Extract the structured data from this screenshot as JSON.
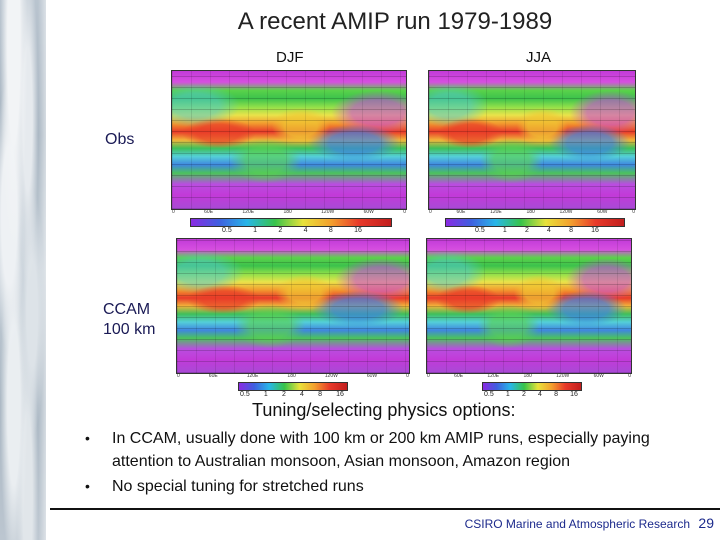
{
  "slide": {
    "title": "A recent AMIP run 1979-1989",
    "columns": {
      "djf": "DJF",
      "jja": "JJA"
    },
    "rows": {
      "obs": "Obs",
      "ccam_line1": "CCAM",
      "ccam_line2": "100 km"
    },
    "colorbar_ticks": {
      "obs": [
        "0.5",
        "1",
        "2",
        "4",
        "8",
        "16"
      ],
      "ccam": [
        "0.5",
        "1",
        "2",
        "4",
        "8",
        "16"
      ]
    },
    "longitude_ticks": [
      "0",
      "60E",
      "120E",
      "180",
      "120W",
      "60W",
      "0"
    ],
    "subheading": "Tuning/selecting physics options:",
    "bullets": [
      "In CCAM, usually done with 100 km or 200 km AMIP runs, especially paying attention to Australian monsoon, Asian monsoon, Amazon region",
      "No special tuning for stretched runs"
    ],
    "footer": {
      "organization": "CSIRO Marine and Atmospheric Research",
      "page_number": "29"
    }
  }
}
